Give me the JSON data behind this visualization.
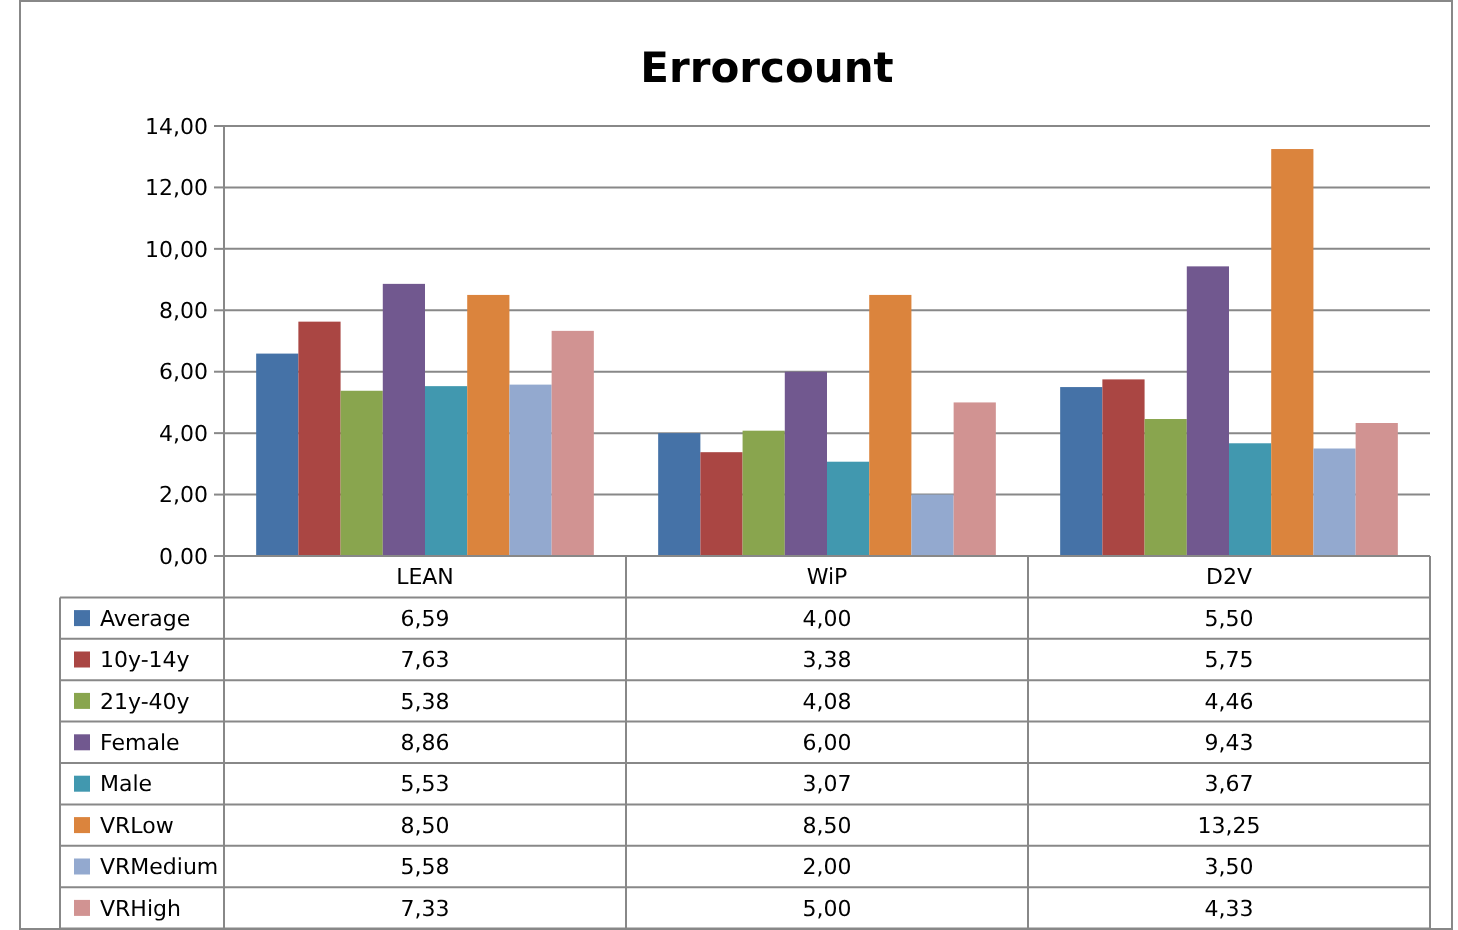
{
  "chart_data": {
    "type": "bar",
    "title": "Errorcount",
    "categories": [
      "LEAN",
      "WiP",
      "D2V"
    ],
    "ylim": [
      0,
      14
    ],
    "yticks": [
      {
        "value": 0,
        "label": "0,00"
      },
      {
        "value": 2,
        "label": "2,00"
      },
      {
        "value": 4,
        "label": "4,00"
      },
      {
        "value": 6,
        "label": "6,00"
      },
      {
        "value": 8,
        "label": "8,00"
      },
      {
        "value": 10,
        "label": "10,00"
      },
      {
        "value": 12,
        "label": "12,00"
      },
      {
        "value": 14,
        "label": "14,00"
      }
    ],
    "grid": "y",
    "legend": "bottom",
    "series": [
      {
        "name": "Average",
        "color": "#4572a7",
        "values": [
          6.59,
          4.0,
          5.5
        ],
        "value_labels": [
          "6,59",
          "4,00",
          "5,50"
        ]
      },
      {
        "name": "10y-14y",
        "color": "#aa4643",
        "values": [
          7.63,
          3.38,
          5.75
        ],
        "value_labels": [
          "7,63",
          "3,38",
          "5,75"
        ]
      },
      {
        "name": "21y-40y",
        "color": "#89a54e",
        "values": [
          5.38,
          4.08,
          4.46
        ],
        "value_labels": [
          "5,38",
          "4,08",
          "4,46"
        ]
      },
      {
        "name": "Female",
        "color": "#71588f",
        "values": [
          8.86,
          6.0,
          9.43
        ],
        "value_labels": [
          "8,86",
          "6,00",
          "9,43"
        ]
      },
      {
        "name": "Male",
        "color": "#4198af",
        "values": [
          5.53,
          3.07,
          3.67
        ],
        "value_labels": [
          "5,53",
          "3,07",
          "3,67"
        ]
      },
      {
        "name": "VRLow",
        "color": "#db843d",
        "values": [
          8.5,
          8.5,
          13.25
        ],
        "value_labels": [
          "8,50",
          "8,50",
          "13,25"
        ]
      },
      {
        "name": "VRMedium",
        "color": "#93a9cf",
        "values": [
          5.58,
          2.0,
          3.5
        ],
        "value_labels": [
          "5,58",
          "2,00",
          "3,50"
        ]
      },
      {
        "name": "VRHigh",
        "color": "#d19392",
        "values": [
          7.33,
          5.0,
          4.33
        ],
        "value_labels": [
          "7,33",
          "5,00",
          "4,33"
        ]
      }
    ]
  }
}
